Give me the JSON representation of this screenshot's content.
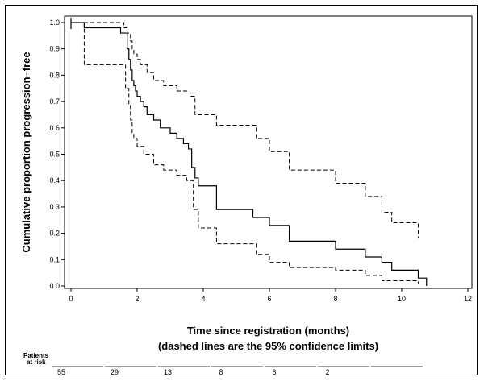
{
  "chart_data": {
    "type": "line",
    "xlabel": "Time since registration (months)",
    "xlabel_note": "(dashed lines are the 95% confidence limits)",
    "ylabel": "Cumulative proportion progression–free",
    "xlim": [
      0,
      12
    ],
    "ylim": [
      0,
      1
    ],
    "x_ticks": [
      "0",
      "2",
      "4",
      "6",
      "8",
      "10",
      "12"
    ],
    "y_ticks": [
      "0.0",
      "0.1",
      "0.2",
      "0.3",
      "0.4",
      "0.5",
      "0.6",
      "0.7",
      "0.8",
      "0.9",
      "1.0"
    ],
    "grid": false,
    "series": [
      {
        "style": "solid",
        "x": [
          0,
          0.4,
          1.5,
          1.7,
          1.75,
          1.8,
          1.85,
          1.9,
          1.95,
          2.0,
          2.1,
          2.2,
          2.3,
          2.5,
          2.7,
          3.0,
          3.2,
          3.4,
          3.55,
          3.65,
          3.75,
          3.85,
          4.4,
          5.5,
          6.0,
          6.6,
          8.0,
          8.9,
          9.4,
          9.7,
          10.5,
          10.75
        ],
        "y": [
          1.0,
          0.98,
          0.96,
          0.9,
          0.86,
          0.82,
          0.78,
          0.76,
          0.74,
          0.72,
          0.7,
          0.68,
          0.65,
          0.63,
          0.6,
          0.58,
          0.56,
          0.54,
          0.52,
          0.45,
          0.41,
          0.38,
          0.29,
          0.26,
          0.23,
          0.17,
          0.14,
          0.11,
          0.09,
          0.06,
          0.03,
          0.0
        ]
      },
      {
        "style": "dashed",
        "x": [
          0,
          1.4,
          1.6,
          1.7,
          1.8,
          1.85,
          1.9,
          2.0,
          2.1,
          2.3,
          2.5,
          2.8,
          3.2,
          3.6,
          3.75,
          4.4,
          5.6,
          6.0,
          6.6,
          8.0,
          8.9,
          9.4,
          9.7,
          10.5
        ],
        "y": [
          1.0,
          1.0,
          0.98,
          0.96,
          0.93,
          0.9,
          0.88,
          0.86,
          0.84,
          0.81,
          0.78,
          0.76,
          0.74,
          0.72,
          0.65,
          0.61,
          0.56,
          0.51,
          0.44,
          0.39,
          0.34,
          0.28,
          0.24,
          0.18
        ]
      },
      {
        "style": "dashed",
        "x": [
          0,
          0.4,
          1.5,
          1.65,
          1.75,
          1.8,
          1.85,
          1.9,
          2.0,
          2.2,
          2.5,
          2.8,
          3.2,
          3.5,
          3.7,
          3.85,
          4.4,
          5.6,
          6.0,
          6.6,
          8.0,
          8.9,
          9.4,
          10.5
        ],
        "y": [
          1.0,
          0.84,
          0.84,
          0.75,
          0.69,
          0.63,
          0.58,
          0.56,
          0.53,
          0.5,
          0.46,
          0.44,
          0.42,
          0.4,
          0.29,
          0.22,
          0.16,
          0.12,
          0.09,
          0.07,
          0.06,
          0.04,
          0.02,
          0.01
        ]
      }
    ],
    "risk_table": {
      "label_line1": "Patients",
      "label_line2": "at risk",
      "values": [
        "55",
        "29",
        "13",
        "8",
        "6",
        "2",
        ""
      ]
    }
  }
}
